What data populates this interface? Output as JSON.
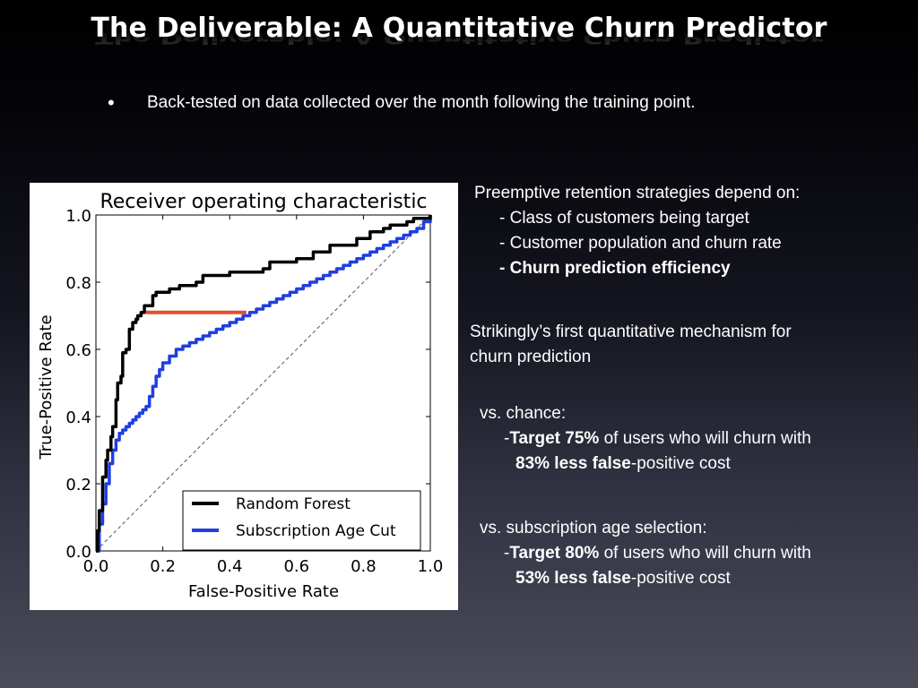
{
  "slide": {
    "title": "The Deliverable: A Quantitative Churn Predictor",
    "bullet": "Back-tested on data collected over the month following the training point."
  },
  "right_panel": {
    "depend_heading": "Preemptive retention strategies depend on:",
    "depend_item1": "- Class of customers being target",
    "depend_item2": "- Customer population and churn rate",
    "depend_item3": "- Churn prediction efficiency",
    "mechanism_line1": "Strikingly’s first quantitative mechanism for",
    "mechanism_line2": "churn prediction",
    "chance": {
      "heading": "vs. chance:",
      "dash": "-",
      "target": "Target 75%",
      "rest": " of users who will churn with",
      "less": "83% less false",
      "cost": "-positive cost"
    },
    "subscription": {
      "heading": "vs. subscription age selection:",
      "dash": "-",
      "target": "Target 80%",
      "rest": " of users who will churn with",
      "less": "53% less false",
      "cost": "-positive cost"
    }
  },
  "chart_data": {
    "type": "line",
    "title": "Receiver operating characteristic",
    "xlabel": "False-Positive Rate",
    "ylabel": "True-Positive Rate",
    "xlim": [
      0.0,
      1.0
    ],
    "ylim": [
      0.0,
      1.0
    ],
    "xticks": [
      "0.0",
      "0.2",
      "0.4",
      "0.6",
      "0.8",
      "1.0"
    ],
    "yticks": [
      "0.0",
      "0.2",
      "0.4",
      "0.6",
      "0.8",
      "1.0"
    ],
    "legend_position": "bottom-right",
    "series": [
      {
        "name": "Random Forest",
        "color": "#000000",
        "x": [
          0.0,
          0.005,
          0.01,
          0.02,
          0.03,
          0.035,
          0.045,
          0.05,
          0.06,
          0.065,
          0.075,
          0.08,
          0.09,
          0.1,
          0.11,
          0.12,
          0.125,
          0.135,
          0.145,
          0.16,
          0.17,
          0.18,
          0.2,
          0.22,
          0.25,
          0.3,
          0.32,
          0.36,
          0.4,
          0.44,
          0.5,
          0.52,
          0.55,
          0.6,
          0.65,
          0.7,
          0.72,
          0.78,
          0.82,
          0.86,
          0.88,
          0.9,
          0.93,
          0.95,
          0.97,
          1.0
        ],
        "y": [
          0.0,
          0.06,
          0.12,
          0.22,
          0.27,
          0.3,
          0.34,
          0.37,
          0.45,
          0.5,
          0.52,
          0.59,
          0.6,
          0.66,
          0.68,
          0.69,
          0.7,
          0.71,
          0.73,
          0.73,
          0.76,
          0.77,
          0.77,
          0.78,
          0.79,
          0.8,
          0.82,
          0.82,
          0.83,
          0.83,
          0.84,
          0.86,
          0.86,
          0.87,
          0.89,
          0.91,
          0.91,
          0.93,
          0.95,
          0.96,
          0.97,
          0.97,
          0.98,
          0.99,
          0.99,
          1.0
        ]
      },
      {
        "name": "Subscription Age Cut",
        "color": "#1f3fe0",
        "x": [
          0.0,
          0.01,
          0.02,
          0.03,
          0.04,
          0.05,
          0.06,
          0.07,
          0.08,
          0.09,
          0.1,
          0.11,
          0.12,
          0.13,
          0.14,
          0.15,
          0.16,
          0.17,
          0.18,
          0.19,
          0.2,
          0.22,
          0.24,
          0.26,
          0.28,
          0.3,
          0.32,
          0.34,
          0.36,
          0.38,
          0.4,
          0.42,
          0.44,
          0.46,
          0.48,
          0.5,
          0.52,
          0.54,
          0.56,
          0.58,
          0.6,
          0.62,
          0.64,
          0.66,
          0.68,
          0.7,
          0.72,
          0.74,
          0.76,
          0.78,
          0.8,
          0.82,
          0.84,
          0.86,
          0.88,
          0.9,
          0.92,
          0.94,
          0.96,
          0.98,
          1.0
        ],
        "y": [
          0.0,
          0.08,
          0.14,
          0.2,
          0.26,
          0.3,
          0.33,
          0.35,
          0.36,
          0.37,
          0.38,
          0.39,
          0.4,
          0.41,
          0.42,
          0.43,
          0.46,
          0.49,
          0.52,
          0.54,
          0.56,
          0.58,
          0.6,
          0.61,
          0.62,
          0.63,
          0.64,
          0.65,
          0.66,
          0.67,
          0.68,
          0.69,
          0.7,
          0.71,
          0.72,
          0.73,
          0.74,
          0.75,
          0.76,
          0.77,
          0.78,
          0.79,
          0.8,
          0.81,
          0.82,
          0.83,
          0.84,
          0.85,
          0.86,
          0.87,
          0.88,
          0.89,
          0.9,
          0.91,
          0.92,
          0.93,
          0.94,
          0.95,
          0.96,
          0.98,
          1.0
        ]
      }
    ],
    "chance_line": {
      "x": [
        0.0,
        1.0
      ],
      "y": [
        0.0,
        1.0
      ],
      "style": "dashed",
      "color": "#555555"
    },
    "highlight": {
      "x": [
        0.15,
        0.45
      ],
      "y": [
        0.71,
        0.71
      ],
      "color": "#e0502a"
    }
  }
}
